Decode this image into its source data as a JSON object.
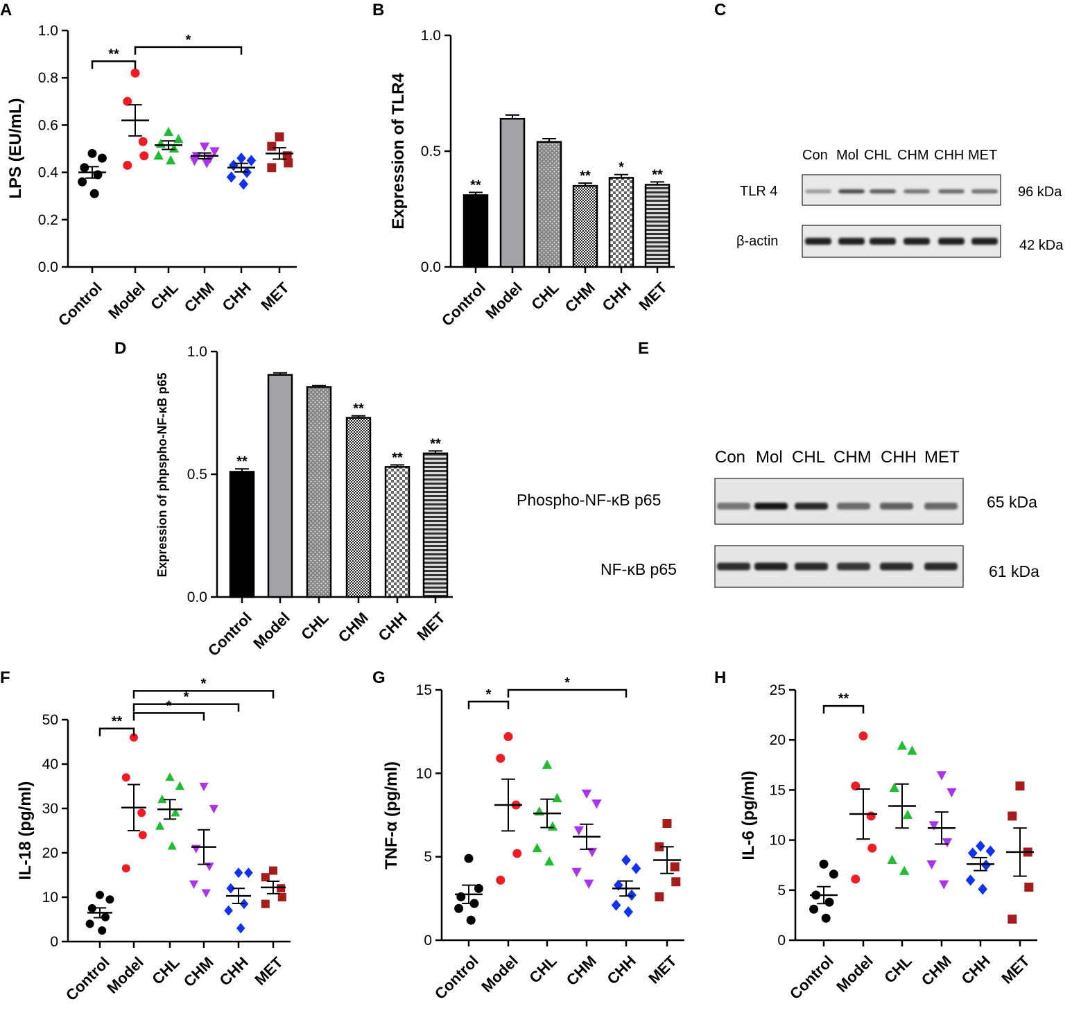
{
  "figure_labels": [
    "A",
    "B",
    "C",
    "D",
    "E",
    "F",
    "G",
    "H"
  ],
  "chart_data": [
    {
      "panel": "A",
      "type": "scatter",
      "ylabel": "LPS (EU/mL)",
      "ylim": [
        0,
        1.0
      ],
      "yticks": [
        0.0,
        0.2,
        0.4,
        0.6,
        0.8,
        1.0
      ],
      "ytick_labels": [
        "0.0",
        "0.2",
        "0.4",
        "0.6",
        "0.8",
        "1.0"
      ],
      "categories": [
        "Control",
        "Model",
        "CHL",
        "CHM",
        "CHH",
        "MET"
      ],
      "series": [
        {
          "name": "Control",
          "color": "#000000",
          "marker": "circle",
          "points": [
            0.48,
            0.46,
            0.42,
            0.39,
            0.36,
            0.31
          ],
          "mean": 0.4,
          "sem": 0.024
        },
        {
          "name": "Model",
          "color": "#ee1c25",
          "marker": "circle",
          "points": [
            0.82,
            0.7,
            0.53,
            0.47,
            0.43
          ],
          "mean": 0.62,
          "sem": 0.066
        },
        {
          "name": "CHL",
          "color": "#22bb33",
          "marker": "triangle-up",
          "points": [
            0.57,
            0.54,
            0.52,
            0.5,
            0.47,
            0.45
          ],
          "mean": 0.515,
          "sem": 0.018
        },
        {
          "name": "CHM",
          "color": "#aa33ee",
          "marker": "triangle-down",
          "points": [
            0.51,
            0.49,
            0.47,
            0.46,
            0.45,
            0.44
          ],
          "mean": 0.47,
          "sem": 0.012
        },
        {
          "name": "CHH",
          "color": "#1133ee",
          "marker": "diamond",
          "points": [
            0.46,
            0.45,
            0.43,
            0.4,
            0.38,
            0.35
          ],
          "mean": 0.42,
          "sem": 0.018
        },
        {
          "name": "MET",
          "color": "#a51c1c",
          "marker": "square",
          "points": [
            0.55,
            0.51,
            0.47,
            0.44,
            0.42
          ],
          "mean": 0.48,
          "sem": 0.024
        }
      ],
      "brackets": [
        {
          "from": "Control",
          "to": "Model",
          "label": "**",
          "y": 0.87
        },
        {
          "from": "Model",
          "to": "CHH",
          "label": "*",
          "y": 0.93
        }
      ]
    },
    {
      "panel": "B",
      "type": "bar",
      "ylabel": "Expression of TLR4",
      "ylim": [
        0,
        1.0
      ],
      "yticks": [
        0.0,
        0.5,
        1.0
      ],
      "ytick_labels": [
        "0.0",
        "0.5",
        "1.0"
      ],
      "categories": [
        "Control",
        "Model",
        "CHL",
        "CHM",
        "CHH",
        "MET"
      ],
      "values": [
        0.31,
        0.64,
        0.54,
        0.35,
        0.385,
        0.355
      ],
      "errors": [
        0.012,
        0.016,
        0.014,
        0.012,
        0.014,
        0.012
      ],
      "annotations": [
        "**",
        "",
        "",
        "**",
        "*",
        "**"
      ]
    },
    {
      "panel": "D",
      "type": "bar",
      "ylabel": "Expression of phpspho-NF-κB  p65",
      "ylim": [
        0,
        1.0
      ],
      "yticks": [
        0.0,
        0.5,
        1.0
      ],
      "ytick_labels": [
        "0.0",
        "0.5",
        "1.0"
      ],
      "categories": [
        "Control",
        "Model",
        "CHL",
        "CHM",
        "CHH",
        "MET"
      ],
      "values": [
        0.51,
        0.905,
        0.855,
        0.73,
        0.53,
        0.585
      ],
      "errors": [
        0.012,
        0.008,
        0.007,
        0.008,
        0.008,
        0.01
      ],
      "annotations": [
        "**",
        "",
        "",
        "**",
        "**",
        "**"
      ]
    },
    {
      "panel": "F",
      "type": "scatter",
      "ylabel": "IL-18 (pg/ml)",
      "ylim": [
        0,
        50
      ],
      "yticks": [
        0,
        10,
        20,
        30,
        40,
        50
      ],
      "ytick_labels": [
        "0",
        "10",
        "20",
        "30",
        "40",
        "50"
      ],
      "categories": [
        "Control",
        "Model",
        "CHL",
        "CHM",
        "CHH",
        "MET"
      ],
      "series": [
        {
          "name": "Control",
          "color": "#000000",
          "marker": "circle",
          "points": [
            10.5,
            9.5,
            7.5,
            5.5,
            4.0,
            2.5
          ],
          "mean": 6.5,
          "sem": 1.1
        },
        {
          "name": "Model",
          "color": "#ee1c25",
          "marker": "circle",
          "points": [
            46.0,
            37.0,
            29.0,
            24.0,
            16.5
          ],
          "mean": 30.2,
          "sem": 5.2
        },
        {
          "name": "CHL",
          "color": "#22bb33",
          "marker": "triangle-up",
          "points": [
            37.0,
            35.0,
            32.0,
            29.0,
            26.0,
            21.5
          ],
          "mean": 29.8,
          "sem": 2.2
        },
        {
          "name": "CHM",
          "color": "#aa33ee",
          "marker": "triangle-down",
          "points": [
            35.0,
            30.0,
            21.0,
            17.0,
            13.0,
            11.0
          ],
          "mean": 21.3,
          "sem": 3.9
        },
        {
          "name": "CHH",
          "color": "#1133ee",
          "marker": "diamond",
          "points": [
            15.5,
            15.5,
            12.0,
            8.5,
            7.0,
            3.0
          ],
          "mean": 10.3,
          "sem": 1.7
        },
        {
          "name": "MET",
          "color": "#a51c1c",
          "marker": "square",
          "points": [
            16.0,
            14.5,
            12.0,
            10.0,
            8.5
          ],
          "mean": 12.2,
          "sem": 1.4
        }
      ],
      "brackets": [
        {
          "from": "Control",
          "to": "Model",
          "label": "**",
          "y": 48.0
        },
        {
          "from": "Model",
          "to": "CHM",
          "label": "*",
          "y": 51.5
        },
        {
          "from": "Model",
          "to": "CHH",
          "label": "*",
          "y": 53.5
        },
        {
          "from": "Model",
          "to": "MET",
          "label": "*",
          "y": 56.5
        }
      ]
    },
    {
      "panel": "G",
      "type": "scatter",
      "ylabel": "TNF-α (pg/ml)",
      "ylim": [
        0,
        15
      ],
      "yticks": [
        0,
        5,
        10,
        15
      ],
      "ytick_labels": [
        "0",
        "5",
        "10",
        "15"
      ],
      "categories": [
        "Control",
        "Model",
        "CHL",
        "CHM",
        "CHH",
        "MET"
      ],
      "series": [
        {
          "name": "Control",
          "color": "#000000",
          "marker": "circle",
          "points": [
            4.9,
            3.1,
            2.6,
            2.2,
            1.9,
            1.2
          ],
          "mean": 2.75,
          "sem": 0.55
        },
        {
          "name": "Model",
          "color": "#ee1c25",
          "marker": "circle",
          "points": [
            12.2,
            10.9,
            8.1,
            5.2,
            3.6
          ],
          "mean": 8.1,
          "sem": 1.55
        },
        {
          "name": "CHL",
          "color": "#22bb33",
          "marker": "triangle-up",
          "points": [
            10.5,
            8.5,
            7.7,
            6.8,
            5.5,
            4.7
          ],
          "mean": 7.6,
          "sem": 0.85
        },
        {
          "name": "CHM",
          "color": "#aa33ee",
          "marker": "triangle-down",
          "points": [
            8.8,
            8.2,
            6.6,
            5.3,
            4.1,
            3.4
          ],
          "mean": 6.2,
          "sem": 0.75
        },
        {
          "name": "CHH",
          "color": "#1133ee",
          "marker": "diamond",
          "points": [
            4.8,
            4.3,
            3.3,
            2.7,
            2.1,
            1.7
          ],
          "mean": 3.1,
          "sem": 0.45
        },
        {
          "name": "MET",
          "color": "#a51c1c",
          "marker": "square",
          "points": [
            7.0,
            5.6,
            4.4,
            3.5,
            2.6
          ],
          "mean": 4.8,
          "sem": 0.8
        }
      ],
      "brackets": [
        {
          "from": "Control",
          "to": "Model",
          "label": "*",
          "y": 14.3
        },
        {
          "from": "Model",
          "to": "CHH",
          "label": "*",
          "y": 15.0
        }
      ]
    },
    {
      "panel": "H",
      "type": "scatter",
      "ylabel": "IL-6 (pg/ml)",
      "ylim": [
        0,
        25
      ],
      "yticks": [
        0,
        5,
        10,
        15,
        20,
        25
      ],
      "ytick_labels": [
        "0",
        "5",
        "10",
        "15",
        "20",
        "25"
      ],
      "categories": [
        "Control",
        "Model",
        "CHL",
        "CHM",
        "CHH",
        "MET"
      ],
      "series": [
        {
          "name": "Control",
          "color": "#000000",
          "marker": "circle",
          "points": [
            7.6,
            6.6,
            4.5,
            3.8,
            3.1,
            2.2
          ],
          "mean": 4.5,
          "sem": 0.85
        },
        {
          "name": "Model",
          "color": "#ee1c25",
          "marker": "circle",
          "points": [
            20.4,
            15.4,
            12.4,
            9.2,
            6.1
          ],
          "mean": 12.6,
          "sem": 2.5
        },
        {
          "name": "CHL",
          "color": "#22bb33",
          "marker": "triangle-up",
          "points": [
            19.4,
            18.9,
            15.2,
            12.5,
            8.0,
            6.9
          ],
          "mean": 13.4,
          "sem": 2.2
        },
        {
          "name": "CHM",
          "color": "#aa33ee",
          "marker": "triangle-down",
          "points": [
            16.5,
            14.8,
            11.5,
            9.8,
            7.6,
            5.6
          ],
          "mean": 11.2,
          "sem": 1.6
        },
        {
          "name": "CHH",
          "color": "#1133ee",
          "marker": "diamond",
          "points": [
            9.4,
            8.9,
            8.7,
            7.5,
            6.0,
            5.1
          ],
          "mean": 7.6,
          "sem": 0.65
        },
        {
          "name": "MET",
          "color": "#a51c1c",
          "marker": "square",
          "points": [
            15.4,
            12.4,
            8.8,
            5.3,
            2.1
          ],
          "mean": 8.8,
          "sem": 2.4
        }
      ],
      "brackets": [
        {
          "from": "Control",
          "to": "Model",
          "label": "**",
          "y": 23.4
        }
      ]
    }
  ],
  "blots": [
    {
      "panel": "C",
      "lanes": [
        "Con",
        "Mol",
        "CHL",
        "CHM",
        "CHH",
        "MET"
      ],
      "rows": [
        {
          "label": "TLR 4",
          "size": "96 kDa",
          "intensity": [
            0.35,
            0.75,
            0.68,
            0.55,
            0.6,
            0.58
          ]
        },
        {
          "label": "β-actin",
          "size": "42 kDa",
          "intensity": [
            0.95,
            0.95,
            0.95,
            0.95,
            0.95,
            0.95
          ]
        }
      ]
    },
    {
      "panel": "E",
      "lanes": [
        "Con",
        "Mol",
        "CHL",
        "CHM",
        "CHH",
        "MET"
      ],
      "rows": [
        {
          "label": "Phospho-NF-κB p65",
          "size": "65 kDa",
          "intensity": [
            0.55,
            1.0,
            0.92,
            0.6,
            0.65,
            0.62
          ]
        },
        {
          "label": "NF-κB p65",
          "size": "61 kDa",
          "intensity": [
            0.9,
            0.95,
            0.92,
            0.85,
            0.92,
            0.92
          ]
        }
      ]
    }
  ]
}
